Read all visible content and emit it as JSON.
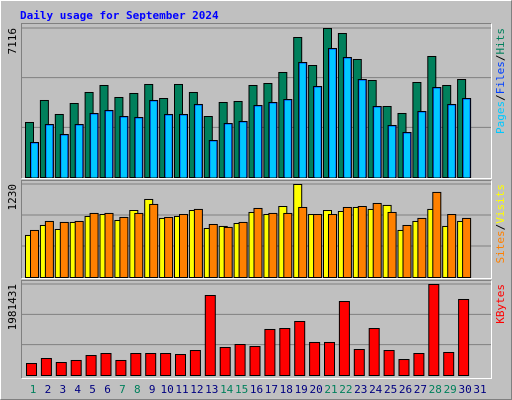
{
  "chart_data": [
    {
      "type": "bar",
      "title": "Daily usage for September 2024",
      "title_color": "#0000ff",
      "ylim": [
        0,
        7116
      ],
      "yticks": [
        7116
      ],
      "legend_separator": "/",
      "series": [
        {
          "name": "Hits",
          "color": "#00805c",
          "values": [
            2627,
            3678,
            3009,
            3534,
            4060,
            4394,
            3821,
            4012,
            4442,
            3773,
            4442,
            4060,
            2913,
            3582,
            3630,
            4394,
            4489,
            5015,
            6686,
            5349,
            7116,
            6877,
            5636,
            4633,
            3391,
            3057,
            4537,
            5779,
            4394,
            4680,
            null
          ]
        },
        {
          "name": "Files",
          "color": "#0040ff",
          "values": [
            1672,
            2531,
            2054,
            2531,
            3057,
            3200,
            2913,
            2866,
            3678,
            3009,
            3009,
            3487,
            1767,
            2579,
            2675,
            3439,
            3582,
            3725,
            5492,
            4346,
            6161,
            5731,
            4680,
            3391,
            2484,
            2149,
            3152,
            4298,
            3487,
            3773,
            null
          ]
        },
        {
          "name": "Pages",
          "color": "#00c8ff",
          "values": [
            1672,
            2531,
            2054,
            2531,
            3057,
            3200,
            2913,
            2866,
            3678,
            3009,
            3009,
            3487,
            1767,
            2579,
            2675,
            3439,
            3582,
            3725,
            5492,
            4346,
            6161,
            5731,
            4680,
            3391,
            2484,
            2149,
            3152,
            4298,
            3487,
            3773,
            null
          ]
        }
      ]
    },
    {
      "type": "bar",
      "ylim": [
        0,
        1230
      ],
      "yticks": [
        1230
      ],
      "legend_separator": "/",
      "series": [
        {
          "name": "Visits",
          "color": "#ffff00",
          "values": [
            556,
            688,
            635,
            728,
            807,
            833,
            754,
            886,
            1032,
            781,
            807,
            886,
            648,
            675,
            714,
            860,
            833,
            939,
            1230,
            833,
            886,
            873,
            926,
            900,
            953,
            622,
            741,
            900,
            675,
            741,
            null
          ]
        },
        {
          "name": "Sites",
          "color": "#ff8000",
          "values": [
            622,
            741,
            728,
            741,
            847,
            847,
            794,
            847,
            966,
            794,
            833,
            900,
            701,
            662,
            728,
            913,
            847,
            847,
            926,
            833,
            833,
            926,
            939,
            979,
            860,
            688,
            781,
            1125,
            833,
            781,
            null
          ]
        }
      ]
    },
    {
      "type": "bar",
      "ylim": [
        0,
        1981431
      ],
      "yticks": [
        1981431
      ],
      "series": [
        {
          "name": "KBytes",
          "color": "#ff0000",
          "values": [
            261000,
            370000,
            283000,
            327000,
            435000,
            479000,
            327000,
            479000,
            479000,
            479000,
            457000,
            544000,
            1742000,
            610000,
            675000,
            631000,
            1002000,
            1023000,
            1176000,
            719000,
            719000,
            1611000,
            566000,
            1023000,
            544000,
            348000,
            479000,
            1981431,
            501000,
            1655000,
            null
          ]
        }
      ],
      "categories": [
        "1",
        "2",
        "3",
        "4",
        "5",
        "6",
        "7",
        "8",
        "9",
        "10",
        "11",
        "12",
        "13",
        "14",
        "15",
        "16",
        "17",
        "18",
        "19",
        "20",
        "21",
        "22",
        "23",
        "24",
        "25",
        "26",
        "27",
        "28",
        "29",
        "30",
        "31"
      ],
      "category_colors": [
        "#00805c",
        "#000080",
        "#000080",
        "#000080",
        "#000080",
        "#000080",
        "#00805c",
        "#00805c",
        "#000080",
        "#000080",
        "#000080",
        "#000080",
        "#000080",
        "#00805c",
        "#00805c",
        "#000080",
        "#000080",
        "#000080",
        "#000080",
        "#000080",
        "#00805c",
        "#00805c",
        "#000080",
        "#000080",
        "#000080",
        "#000080",
        "#000080",
        "#00805c",
        "#00805c",
        "#000080",
        "#000080"
      ]
    }
  ]
}
